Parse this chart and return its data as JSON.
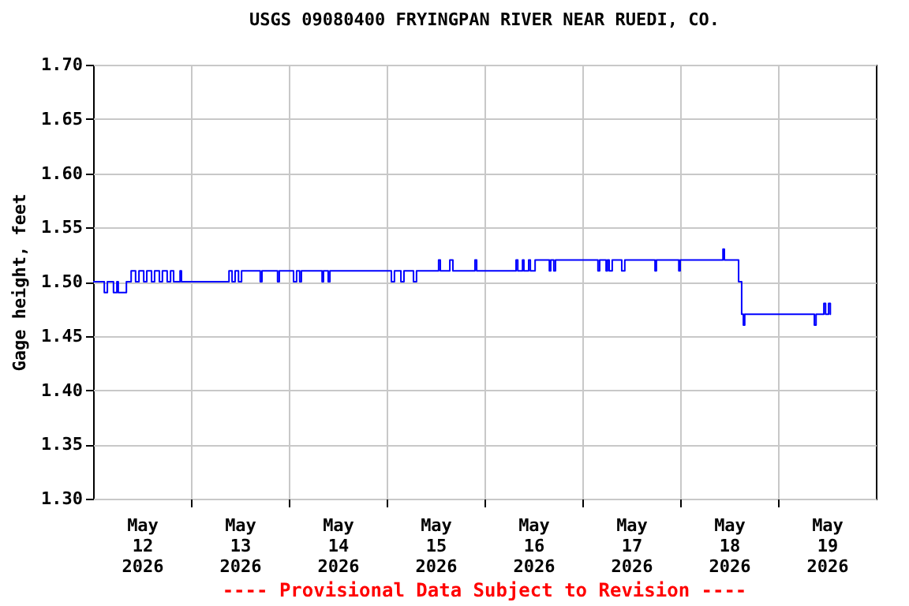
{
  "chart_data": {
    "type": "step",
    "title": "USGS 09080400 FRYINGPAN RIVER NEAR RUEDI, CO.",
    "ylabel": "Gage height, feet",
    "annotations": [
      "---- Provisional Data Subject to Revision ----"
    ],
    "xlim": [
      "2026-05-12T00:00",
      "2026-05-20T00:00"
    ],
    "xticks": [
      {
        "value": "2026-05-12T12:00",
        "label": "May\n12\n2026"
      },
      {
        "value": "2026-05-13T00:00",
        "label": null
      },
      {
        "value": "2026-05-13T12:00",
        "label": "May\n13\n2026"
      },
      {
        "value": "2026-05-14T00:00",
        "label": null
      },
      {
        "value": "2026-05-14T12:00",
        "label": "May\n14\n2026"
      },
      {
        "value": "2026-05-15T00:00",
        "label": null
      },
      {
        "value": "2026-05-15T12:00",
        "label": "May\n15\n2026"
      },
      {
        "value": "2026-05-16T00:00",
        "label": null
      },
      {
        "value": "2026-05-16T12:00",
        "label": "May\n16\n2026"
      },
      {
        "value": "2026-05-17T00:00",
        "label": null
      },
      {
        "value": "2026-05-17T12:00",
        "label": "May\n17\n2026"
      },
      {
        "value": "2026-05-18T00:00",
        "label": null
      },
      {
        "value": "2026-05-18T12:00",
        "label": "May\n18\n2026"
      },
      {
        "value": "2026-05-19T00:00",
        "label": null
      },
      {
        "value": "2026-05-19T12:00",
        "label": "May\n19\n2026"
      }
    ],
    "ylim": [
      1.3,
      1.7
    ],
    "yticks": [
      {
        "value": 1.3,
        "label": "1.30"
      },
      {
        "value": 1.35,
        "label": "1.35"
      },
      {
        "value": 1.4,
        "label": "1.40"
      },
      {
        "value": 1.45,
        "label": "1.45"
      },
      {
        "value": 1.5,
        "label": "1.50"
      },
      {
        "value": 1.55,
        "label": "1.55"
      },
      {
        "value": 1.6,
        "label": "1.60"
      },
      {
        "value": 1.65,
        "label": "1.65"
      },
      {
        "value": 1.7,
        "label": "1.70"
      }
    ],
    "grid": true,
    "line_style": "solid",
    "series": [
      {
        "color": "#0000ff",
        "x": [
          "2026-05-12T00:00",
          "2026-05-12T02:45",
          "2026-05-12T03:30",
          "2026-05-12T05:00",
          "2026-05-12T05:50",
          "2026-05-12T06:10",
          "2026-05-12T08:10",
          "2026-05-12T09:20",
          "2026-05-12T10:25",
          "2026-05-12T11:15",
          "2026-05-12T12:25",
          "2026-05-12T13:10",
          "2026-05-12T14:20",
          "2026-05-12T15:05",
          "2026-05-12T16:15",
          "2026-05-12T17:00",
          "2026-05-12T18:10",
          "2026-05-12T19:00",
          "2026-05-12T19:45",
          "2026-05-12T21:20",
          "2026-05-12T21:40",
          "2026-05-13T09:20",
          "2026-05-13T10:05",
          "2026-05-13T10:50",
          "2026-05-13T11:40",
          "2026-05-13T12:25",
          "2026-05-13T17:00",
          "2026-05-13T17:25",
          "2026-05-13T21:15",
          "2026-05-13T21:40",
          "2026-05-14T01:10",
          "2026-05-14T01:55",
          "2026-05-14T02:40",
          "2026-05-14T03:05",
          "2026-05-14T08:10",
          "2026-05-14T08:30",
          "2026-05-14T09:40",
          "2026-05-14T10:05",
          "2026-05-15T01:10",
          "2026-05-15T01:55",
          "2026-05-15T03:30",
          "2026-05-15T04:15",
          "2026-05-15T06:35",
          "2026-05-15T07:20",
          "2026-05-15T12:45",
          "2026-05-15T13:10",
          "2026-05-15T15:30",
          "2026-05-15T16:15",
          "2026-05-15T21:40",
          "2026-05-15T22:05",
          "2026-05-16T07:45",
          "2026-05-16T08:10",
          "2026-05-16T09:20",
          "2026-05-16T09:40",
          "2026-05-16T10:50",
          "2026-05-16T11:15",
          "2026-05-16T12:25",
          "2026-05-16T15:55",
          "2026-05-16T16:15",
          "2026-05-16T17:00",
          "2026-05-16T17:25",
          "2026-05-17T03:50",
          "2026-05-17T04:15",
          "2026-05-17T05:50",
          "2026-05-17T06:10",
          "2026-05-17T06:35",
          "2026-05-17T07:20",
          "2026-05-17T09:40",
          "2026-05-17T10:25",
          "2026-05-17T17:50",
          "2026-05-17T18:10",
          "2026-05-17T23:40",
          "2026-05-18T00:00",
          "2026-05-18T10:30",
          "2026-05-18T10:50",
          "2026-05-18T14:20",
          "2026-05-18T15:05",
          "2026-05-18T15:30",
          "2026-05-18T15:50",
          "2026-05-19T08:55",
          "2026-05-19T09:20",
          "2026-05-19T11:15",
          "2026-05-19T11:40",
          "2026-05-19T12:25",
          "2026-05-19T12:50",
          "2026-05-19T13:00"
        ],
        "values": [
          1.5,
          1.49,
          1.5,
          1.49,
          1.5,
          1.49,
          1.5,
          1.51,
          1.5,
          1.51,
          1.5,
          1.51,
          1.5,
          1.51,
          1.5,
          1.51,
          1.5,
          1.51,
          1.5,
          1.51,
          1.5,
          1.51,
          1.5,
          1.51,
          1.5,
          1.51,
          1.5,
          1.51,
          1.5,
          1.51,
          1.5,
          1.51,
          1.5,
          1.51,
          1.5,
          1.51,
          1.5,
          1.51,
          1.5,
          1.51,
          1.5,
          1.51,
          1.5,
          1.51,
          1.52,
          1.51,
          1.52,
          1.51,
          1.52,
          1.51,
          1.52,
          1.51,
          1.52,
          1.51,
          1.52,
          1.51,
          1.52,
          1.51,
          1.52,
          1.51,
          1.52,
          1.51,
          1.52,
          1.51,
          1.52,
          1.51,
          1.52,
          1.51,
          1.52,
          1.51,
          1.52,
          1.51,
          1.52,
          1.53,
          1.52,
          1.5,
          1.47,
          1.46,
          1.47,
          1.46,
          1.47,
          1.48,
          1.47,
          1.48,
          1.47,
          1.47
        ]
      }
    ]
  }
}
